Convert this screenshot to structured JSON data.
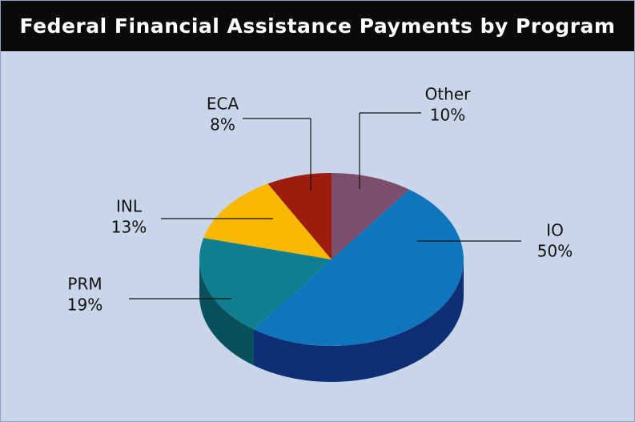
{
  "chart_data": {
    "type": "pie",
    "title": "Federal Financial Assistance Payments by Program",
    "categories": [
      "Other",
      "IO",
      "PRM",
      "INL",
      "ECA"
    ],
    "values": [
      10,
      50,
      19,
      13,
      8
    ],
    "value_labels": [
      "10%",
      "50%",
      "19%",
      "13%",
      "8%"
    ],
    "colors": [
      "#7b4f6b",
      "#0f75bc",
      "#0f7e8e",
      "#f9b800",
      "#9c1c0e"
    ],
    "side_colors": [
      "#4f2f44",
      "#0e2f75",
      "#08515c",
      "#a87a00",
      "#5e0f07"
    ]
  }
}
